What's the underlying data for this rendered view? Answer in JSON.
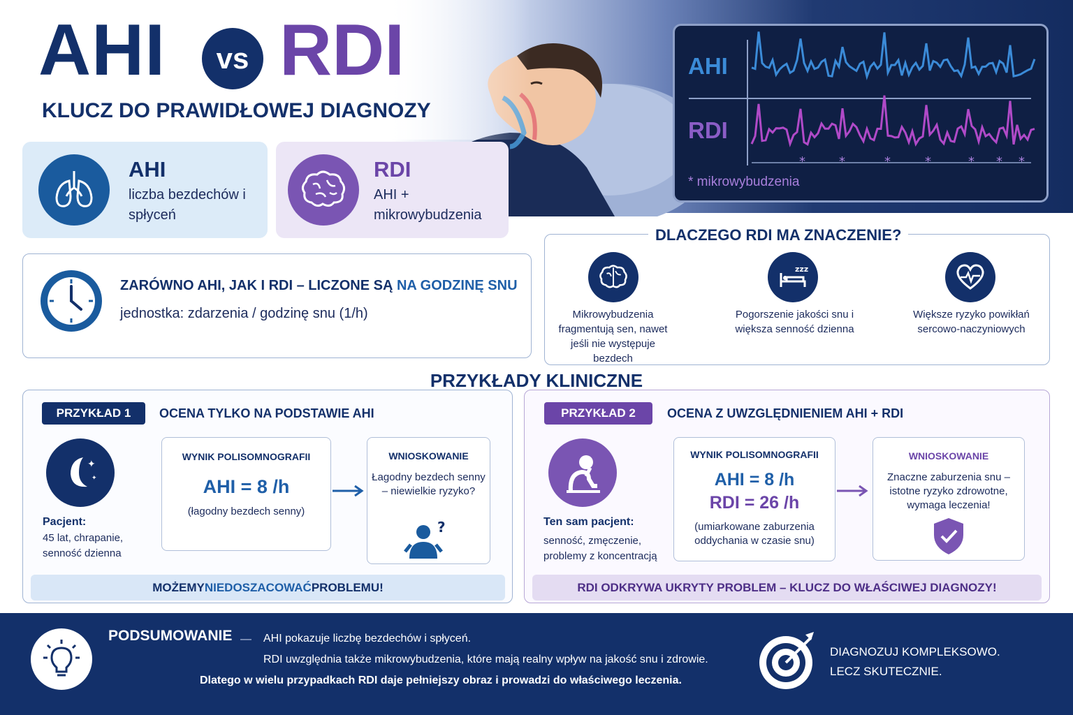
{
  "header": {
    "title_left": "AHI",
    "title_vs": "vs",
    "title_right": "RDI",
    "subtitle": "KLUCZ DO PRAWIDŁOWEJ DIAGNOZY"
  },
  "monitor": {
    "label_ahi": "AHI",
    "label_rdi": "RDI",
    "legend": "* mikrowybudzenia"
  },
  "definitions": {
    "ahi": {
      "title": "AHI",
      "description": "liczba bezdechów i spłyceń",
      "icon": "lungs-icon"
    },
    "rdi": {
      "title": "RDI",
      "description": "AHI + mikrowybudzenia",
      "icon": "brain-icon"
    }
  },
  "per_hour": {
    "text_prefix": "ZARÓWNO AHI, JAK I RDI – LICZONE SĄ ",
    "text_highlight": "NA GODZINĘ SNU",
    "unit": "jednostka: zdarzenia / godzinę snu (1/h)"
  },
  "why": {
    "title": "DLACZEGO RDI MA ZNACZENIE?",
    "items": [
      {
        "icon": "brain-icon",
        "text": "Mikrowybudzenia fragmentują sen, nawet jeśli nie występuje bezdech"
      },
      {
        "icon": "bed-icon",
        "text": "Pogorszenie jakości snu i większa senność dzienna"
      },
      {
        "icon": "heart-icon",
        "text": "Większe ryzyko powikłań sercowo-naczyniowych"
      }
    ]
  },
  "clinical": {
    "title": "PRZYKŁADY KLINICZNE",
    "example1": {
      "tag": "PRZYKŁAD 1",
      "heading": "OCENA TYLKO NA PODSTAWIE AHI",
      "patient_label": "Pacjent:",
      "patient_desc": "45 lat, chrapanie, senność dzienna",
      "result_heading": "WYNIK POLISOMNOGRAFII",
      "result_ahi": "AHI = 8 /h",
      "result_note": "(łagodny bezdech senny)",
      "conclusion_heading": "WNIOSKOWANIE",
      "conclusion_text": "Łagodny bezdech senny – niewielkie ryzyko?",
      "banner_prefix": "MOŻEMY ",
      "banner_highlight": "NIEDOSZACOWAĆ",
      "banner_suffix": " PROBLEMU!"
    },
    "example2": {
      "tag": "PRZYKŁAD 2",
      "heading": "OCENA Z UWZGLĘDNIENIEM AHI + RDI",
      "patient_label": "Ten sam pacjent:",
      "patient_desc": "senność, zmęczenie, problemy z koncentracją",
      "result_heading": "WYNIK POLISOMNOGRAFII",
      "result_ahi": "AHI = 8 /h",
      "result_rdi": "RDI = 26 /h",
      "result_note": "(umiarkowane zaburzenia oddychania w czasie snu)",
      "conclusion_heading": "WNIOSKOWANIE",
      "conclusion_text": "Znaczne zaburzenia snu – istotne ryzyko zdrowotne, wymaga leczenia!",
      "banner": "RDI ODKRYWA UKRYTY PROBLEM – KLUCZ DO WŁAŚCIWEJ DIAGNOZY!"
    }
  },
  "summary": {
    "title": "PODSUMOWANIE",
    "dash": "—",
    "line1": "AHI pokazuje liczbę bezdechów i spłyceń.",
    "line2": "RDI uwzględnia także mikrowybudzenia, które mają realny wpływ na jakość snu i zdrowie.",
    "line3": "Dlatego w wielu przypadkach RDI daje pełniejszy obraz i prowadzi do właściwego leczenia.",
    "slogan1": "DIAGNOZUJ KOMPLEKSOWO.",
    "slogan2": "LECZ SKUTECZNIE."
  },
  "colors": {
    "navy": "#13306a",
    "blue": "#1f5fa8",
    "purple": "#6b45a8",
    "ahi_wave": "#3b8bd8",
    "rdi_wave": "#b04ac8"
  }
}
